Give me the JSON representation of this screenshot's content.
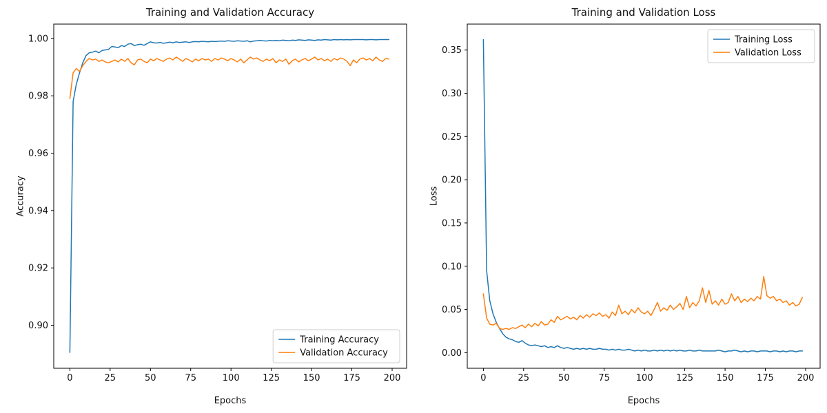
{
  "figure": {
    "background": "#ffffff",
    "spine_color": "#000000"
  },
  "chart_data": [
    {
      "type": "line",
      "title": "Training and Validation Accuracy",
      "xlabel": "Epochs",
      "ylabel": "Accuracy",
      "xlim": [
        -10,
        209
      ],
      "ylim": [
        0.885,
        1.005
      ],
      "xticks": [
        0,
        25,
        50,
        75,
        100,
        125,
        150,
        175,
        200
      ],
      "xtick_labels": [
        "0",
        "25",
        "50",
        "75",
        "100",
        "125",
        "150",
        "175",
        "200"
      ],
      "yticks": [
        0.9,
        0.92,
        0.94,
        0.96,
        0.98,
        1.0
      ],
      "ytick_labels": [
        "0.90",
        "0.92",
        "0.94",
        "0.96",
        "0.98",
        "1.00"
      ],
      "grid": false,
      "legend_position": "lower right",
      "x": [
        0,
        2,
        4,
        6,
        8,
        10,
        12,
        14,
        16,
        18,
        20,
        22,
        24,
        26,
        28,
        30,
        32,
        34,
        36,
        38,
        40,
        42,
        44,
        46,
        48,
        50,
        52,
        54,
        56,
        58,
        60,
        62,
        64,
        66,
        68,
        70,
        72,
        74,
        76,
        78,
        80,
        82,
        84,
        86,
        88,
        90,
        92,
        94,
        96,
        98,
        100,
        102,
        104,
        106,
        108,
        110,
        112,
        114,
        116,
        118,
        120,
        122,
        124,
        126,
        128,
        130,
        132,
        134,
        136,
        138,
        140,
        142,
        144,
        146,
        148,
        150,
        152,
        154,
        156,
        158,
        160,
        162,
        164,
        166,
        168,
        170,
        172,
        174,
        176,
        178,
        180,
        182,
        184,
        186,
        188,
        190,
        192,
        194,
        196,
        198
      ],
      "series": [
        {
          "name": "Training Accuracy",
          "color": "#1f77b4",
          "values": [
            0.8905,
            0.978,
            0.984,
            0.988,
            0.9915,
            0.994,
            0.995,
            0.9952,
            0.9956,
            0.995,
            0.9958,
            0.996,
            0.9962,
            0.9972,
            0.997,
            0.9968,
            0.9975,
            0.9972,
            0.998,
            0.9982,
            0.9975,
            0.9978,
            0.998,
            0.9976,
            0.9982,
            0.9988,
            0.9985,
            0.9984,
            0.9986,
            0.9983,
            0.9985,
            0.9987,
            0.9985,
            0.9988,
            0.9986,
            0.9987,
            0.9988,
            0.9986,
            0.9988,
            0.9989,
            0.9988,
            0.999,
            0.9989,
            0.9988,
            0.999,
            0.9989,
            0.999,
            0.9991,
            0.999,
            0.9992,
            0.9991,
            0.999,
            0.9992,
            0.9991,
            0.999,
            0.9992,
            0.9988,
            0.9991,
            0.9992,
            0.9993,
            0.9992,
            0.9991,
            0.9993,
            0.9992,
            0.9993,
            0.9992,
            0.9994,
            0.9993,
            0.9992,
            0.9994,
            0.9993,
            0.9995,
            0.9994,
            0.9993,
            0.9995,
            0.9994,
            0.9993,
            0.9995,
            0.9994,
            0.9996,
            0.9995,
            0.9994,
            0.9996,
            0.9995,
            0.9996,
            0.9995,
            0.9996,
            0.9995,
            0.9996,
            0.9996,
            0.9996,
            0.9996,
            0.9995,
            0.9996,
            0.9996,
            0.9995,
            0.9996,
            0.9996,
            0.9996,
            0.9996
          ]
        },
        {
          "name": "Validation Accuracy",
          "color": "#ff7f0e",
          "values": [
            0.979,
            0.988,
            0.9895,
            0.9885,
            0.9905,
            0.992,
            0.993,
            0.9925,
            0.9928,
            0.992,
            0.9925,
            0.9918,
            0.9915,
            0.992,
            0.9925,
            0.9918,
            0.9928,
            0.992,
            0.993,
            0.9915,
            0.9908,
            0.9925,
            0.9928,
            0.992,
            0.9915,
            0.9928,
            0.9922,
            0.993,
            0.9925,
            0.992,
            0.9928,
            0.9932,
            0.9925,
            0.9935,
            0.9928,
            0.992,
            0.993,
            0.9925,
            0.9918,
            0.9928,
            0.9922,
            0.993,
            0.9925,
            0.9928,
            0.992,
            0.993,
            0.9925,
            0.9932,
            0.9928,
            0.9922,
            0.993,
            0.9925,
            0.9918,
            0.9928,
            0.9915,
            0.9925,
            0.9935,
            0.9928,
            0.9932,
            0.9925,
            0.992,
            0.9928,
            0.9922,
            0.993,
            0.9915,
            0.9925,
            0.992,
            0.9928,
            0.991,
            0.9922,
            0.9928,
            0.9918,
            0.9925,
            0.993,
            0.9922,
            0.9928,
            0.9935,
            0.9925,
            0.993,
            0.9922,
            0.9928,
            0.992,
            0.993,
            0.9925,
            0.9932,
            0.9928,
            0.992,
            0.9905,
            0.9925,
            0.9915,
            0.9928,
            0.9932,
            0.9925,
            0.993,
            0.9922,
            0.9935,
            0.9925,
            0.992,
            0.993,
            0.9928
          ]
        }
      ]
    },
    {
      "type": "line",
      "title": "Training and Validation Loss",
      "xlabel": "Epochs",
      "ylabel": "Loss",
      "xlim": [
        -10,
        209
      ],
      "ylim": [
        -0.018,
        0.38
      ],
      "xticks": [
        0,
        25,
        50,
        75,
        100,
        125,
        150,
        175,
        200
      ],
      "xtick_labels": [
        "0",
        "25",
        "50",
        "75",
        "100",
        "125",
        "150",
        "175",
        "200"
      ],
      "yticks": [
        0.0,
        0.05,
        0.1,
        0.15,
        0.2,
        0.25,
        0.3,
        0.35
      ],
      "ytick_labels": [
        "0.00",
        "0.05",
        "0.10",
        "0.15",
        "0.20",
        "0.25",
        "0.30",
        "0.35"
      ],
      "grid": false,
      "legend_position": "upper right",
      "x": [
        0,
        2,
        4,
        6,
        8,
        10,
        12,
        14,
        16,
        18,
        20,
        22,
        24,
        26,
        28,
        30,
        32,
        34,
        36,
        38,
        40,
        42,
        44,
        46,
        48,
        50,
        52,
        54,
        56,
        58,
        60,
        62,
        64,
        66,
        68,
        70,
        72,
        74,
        76,
        78,
        80,
        82,
        84,
        86,
        88,
        90,
        92,
        94,
        96,
        98,
        100,
        102,
        104,
        106,
        108,
        110,
        112,
        114,
        116,
        118,
        120,
        122,
        124,
        126,
        128,
        130,
        132,
        134,
        136,
        138,
        140,
        142,
        144,
        146,
        148,
        150,
        152,
        154,
        156,
        158,
        160,
        162,
        164,
        166,
        168,
        170,
        172,
        174,
        176,
        178,
        180,
        182,
        184,
        186,
        188,
        190,
        192,
        194,
        196,
        198
      ],
      "series": [
        {
          "name": "Training Loss",
          "color": "#1f77b4",
          "values": [
            0.362,
            0.095,
            0.06,
            0.045,
            0.035,
            0.028,
            0.022,
            0.018,
            0.016,
            0.015,
            0.013,
            0.012,
            0.014,
            0.011,
            0.009,
            0.008,
            0.009,
            0.008,
            0.007,
            0.008,
            0.006,
            0.007,
            0.006,
            0.008,
            0.006,
            0.005,
            0.006,
            0.005,
            0.004,
            0.005,
            0.004,
            0.005,
            0.004,
            0.005,
            0.004,
            0.004,
            0.005,
            0.004,
            0.004,
            0.003,
            0.004,
            0.003,
            0.004,
            0.003,
            0.003,
            0.004,
            0.003,
            0.002,
            0.003,
            0.002,
            0.003,
            0.002,
            0.002,
            0.003,
            0.002,
            0.003,
            0.002,
            0.003,
            0.002,
            0.003,
            0.002,
            0.003,
            0.002,
            0.002,
            0.003,
            0.002,
            0.002,
            0.003,
            0.002,
            0.002,
            0.002,
            0.002,
            0.002,
            0.003,
            0.002,
            0.001,
            0.002,
            0.002,
            0.003,
            0.002,
            0.001,
            0.002,
            0.001,
            0.002,
            0.002,
            0.001,
            0.002,
            0.002,
            0.002,
            0.001,
            0.002,
            0.002,
            0.001,
            0.002,
            0.001,
            0.002,
            0.002,
            0.001,
            0.002,
            0.002
          ]
        },
        {
          "name": "Validation Loss",
          "color": "#ff7f0e",
          "values": [
            0.068,
            0.04,
            0.033,
            0.032,
            0.034,
            0.028,
            0.027,
            0.028,
            0.027,
            0.029,
            0.028,
            0.03,
            0.032,
            0.029,
            0.033,
            0.03,
            0.034,
            0.031,
            0.036,
            0.032,
            0.033,
            0.038,
            0.035,
            0.042,
            0.038,
            0.04,
            0.042,
            0.039,
            0.041,
            0.038,
            0.043,
            0.04,
            0.044,
            0.041,
            0.045,
            0.043,
            0.046,
            0.042,
            0.044,
            0.04,
            0.047,
            0.043,
            0.055,
            0.045,
            0.048,
            0.044,
            0.05,
            0.046,
            0.052,
            0.047,
            0.045,
            0.048,
            0.043,
            0.05,
            0.058,
            0.048,
            0.052,
            0.049,
            0.055,
            0.05,
            0.053,
            0.057,
            0.05,
            0.065,
            0.052,
            0.058,
            0.054,
            0.06,
            0.075,
            0.058,
            0.072,
            0.056,
            0.06,
            0.055,
            0.062,
            0.056,
            0.058,
            0.068,
            0.06,
            0.065,
            0.058,
            0.062,
            0.059,
            0.063,
            0.06,
            0.065,
            0.062,
            0.088,
            0.066,
            0.063,
            0.065,
            0.06,
            0.062,
            0.058,
            0.06,
            0.055,
            0.058,
            0.054,
            0.056,
            0.064
          ]
        }
      ]
    }
  ]
}
